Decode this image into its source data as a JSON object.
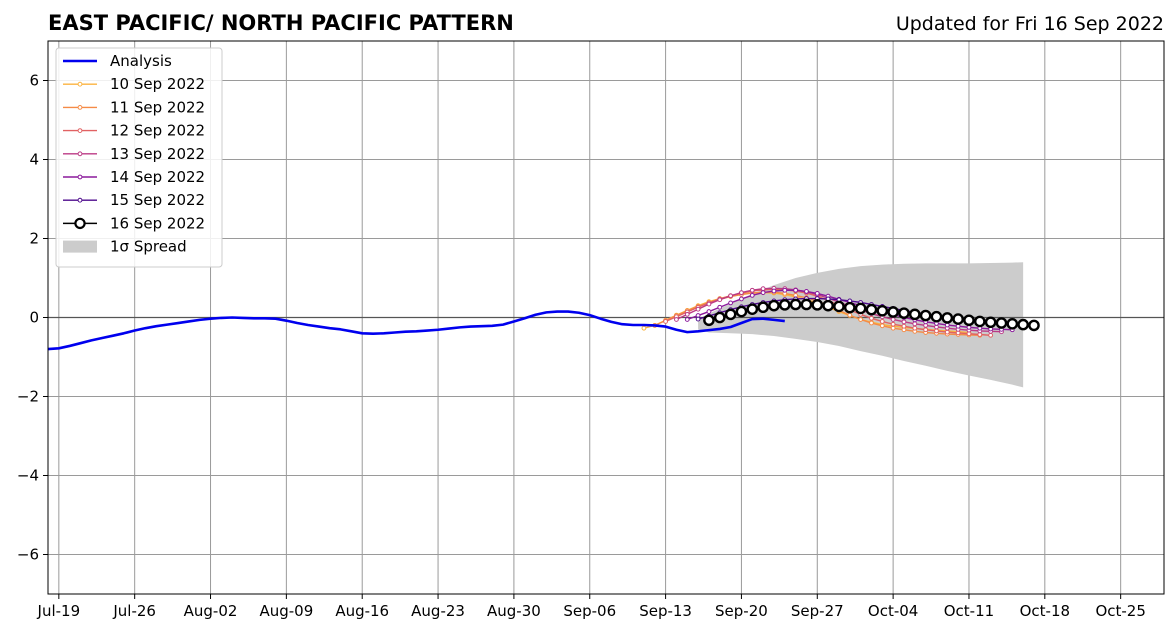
{
  "chart_data": {
    "type": "line",
    "title": "EAST PACIFIC/ NORTH PACIFIC PATTERN",
    "subtitle": "Updated for Fri 16 Sep 2022",
    "xlabel": "",
    "ylabel": "",
    "x_start": "2022-07-18",
    "x_end": "2022-10-29",
    "ylim": [
      -7,
      7
    ],
    "grid": true,
    "legend_position": "top-left",
    "x_ticks": [
      "Jul-19",
      "Jul-26",
      "Aug-02",
      "Aug-09",
      "Aug-16",
      "Aug-23",
      "Aug-30",
      "Sep-06",
      "Sep-13",
      "Sep-20",
      "Sep-27",
      "Oct-04",
      "Oct-11",
      "Oct-18",
      "Oct-25"
    ],
    "x_tick_dates": [
      "2022-07-19",
      "2022-07-26",
      "2022-08-02",
      "2022-08-09",
      "2022-08-16",
      "2022-08-23",
      "2022-08-30",
      "2022-09-06",
      "2022-09-13",
      "2022-09-20",
      "2022-09-27",
      "2022-10-04",
      "2022-10-11",
      "2022-10-18",
      "2022-10-25"
    ],
    "y_ticks": [
      -6,
      -4,
      -2,
      0,
      2,
      4,
      6
    ],
    "y_tick_labels": [
      "−6",
      "−4",
      "−2",
      "0",
      "2",
      "4",
      "6"
    ],
    "analysis": {
      "name": "Analysis",
      "color": "#0000ee",
      "points": [
        [
          "2022-07-18",
          -0.8
        ],
        [
          "2022-07-19",
          -0.78
        ],
        [
          "2022-07-20",
          -0.72
        ],
        [
          "2022-07-21",
          -0.65
        ],
        [
          "2022-07-22",
          -0.58
        ],
        [
          "2022-07-23",
          -0.52
        ],
        [
          "2022-07-24",
          -0.46
        ],
        [
          "2022-07-25",
          -0.4
        ],
        [
          "2022-07-26",
          -0.33
        ],
        [
          "2022-07-27",
          -0.27
        ],
        [
          "2022-07-28",
          -0.22
        ],
        [
          "2022-07-29",
          -0.18
        ],
        [
          "2022-07-30",
          -0.14
        ],
        [
          "2022-07-31",
          -0.1
        ],
        [
          "2022-08-01",
          -0.06
        ],
        [
          "2022-08-02",
          -0.03
        ],
        [
          "2022-08-03",
          -0.01
        ],
        [
          "2022-08-04",
          0.0
        ],
        [
          "2022-08-05",
          -0.01
        ],
        [
          "2022-08-06",
          -0.02
        ],
        [
          "2022-08-07",
          -0.02
        ],
        [
          "2022-08-08",
          -0.03
        ],
        [
          "2022-08-09",
          -0.08
        ],
        [
          "2022-08-10",
          -0.14
        ],
        [
          "2022-08-11",
          -0.19
        ],
        [
          "2022-08-12",
          -0.23
        ],
        [
          "2022-08-13",
          -0.27
        ],
        [
          "2022-08-14",
          -0.3
        ],
        [
          "2022-08-15",
          -0.35
        ],
        [
          "2022-08-16",
          -0.4
        ],
        [
          "2022-08-17",
          -0.41
        ],
        [
          "2022-08-18",
          -0.4
        ],
        [
          "2022-08-19",
          -0.38
        ],
        [
          "2022-08-20",
          -0.36
        ],
        [
          "2022-08-21",
          -0.35
        ],
        [
          "2022-08-22",
          -0.33
        ],
        [
          "2022-08-23",
          -0.31
        ],
        [
          "2022-08-24",
          -0.28
        ],
        [
          "2022-08-25",
          -0.25
        ],
        [
          "2022-08-26",
          -0.23
        ],
        [
          "2022-08-27",
          -0.22
        ],
        [
          "2022-08-28",
          -0.21
        ],
        [
          "2022-08-29",
          -0.18
        ],
        [
          "2022-08-30",
          -0.1
        ],
        [
          "2022-08-31",
          -0.02
        ],
        [
          "2022-09-01",
          0.07
        ],
        [
          "2022-09-02",
          0.13
        ],
        [
          "2022-09-03",
          0.15
        ],
        [
          "2022-09-04",
          0.15
        ],
        [
          "2022-09-05",
          0.12
        ],
        [
          "2022-09-06",
          0.06
        ],
        [
          "2022-09-07",
          -0.03
        ],
        [
          "2022-09-08",
          -0.11
        ],
        [
          "2022-09-09",
          -0.17
        ],
        [
          "2022-09-10",
          -0.19
        ],
        [
          "2022-09-11",
          -0.19
        ],
        [
          "2022-09-12",
          -0.2
        ],
        [
          "2022-09-13",
          -0.23
        ],
        [
          "2022-09-14",
          -0.31
        ],
        [
          "2022-09-15",
          -0.37
        ],
        [
          "2022-09-16",
          -0.35
        ],
        [
          "2022-09-17",
          -0.32
        ],
        [
          "2022-09-18",
          -0.29
        ],
        [
          "2022-09-19",
          -0.24
        ],
        [
          "2022-09-20",
          -0.14
        ],
        [
          "2022-09-21",
          -0.04
        ],
        [
          "2022-09-22",
          -0.03
        ],
        [
          "2022-09-23",
          -0.06
        ],
        [
          "2022-09-24",
          -0.09
        ]
      ]
    },
    "spread": {
      "name": "1σ Spread",
      "color": "#cccccc",
      "points": [
        [
          "2022-09-16",
          -0.3,
          -0.05
        ],
        [
          "2022-09-17",
          -0.38,
          0.1
        ],
        [
          "2022-09-19",
          -0.4,
          0.35
        ],
        [
          "2022-09-21",
          -0.42,
          0.6
        ],
        [
          "2022-09-23",
          -0.47,
          0.82
        ],
        [
          "2022-09-25",
          -0.54,
          1.0
        ],
        [
          "2022-09-27",
          -0.62,
          1.13
        ],
        [
          "2022-09-29",
          -0.72,
          1.23
        ],
        [
          "2022-10-01",
          -0.85,
          1.3
        ],
        [
          "2022-10-03",
          -0.97,
          1.34
        ],
        [
          "2022-10-05",
          -1.1,
          1.36
        ],
        [
          "2022-10-07",
          -1.22,
          1.37
        ],
        [
          "2022-10-09",
          -1.35,
          1.37
        ],
        [
          "2022-10-11",
          -1.47,
          1.37
        ],
        [
          "2022-10-13",
          -1.58,
          1.38
        ],
        [
          "2022-10-15",
          -1.7,
          1.39
        ],
        [
          "2022-10-16",
          -1.77,
          1.4
        ]
      ]
    },
    "series": [
      {
        "name": "10 Sep 2022",
        "color": "#fbb33f",
        "start": "2022-09-11",
        "values": [
          -0.27,
          -0.2,
          -0.07,
          0.06,
          0.18,
          0.3,
          0.4,
          0.48,
          0.55,
          0.6,
          0.62,
          0.63,
          0.62,
          0.58,
          0.52,
          0.45,
          0.37,
          0.26,
          0.15,
          0.05,
          -0.05,
          -0.12,
          -0.18,
          -0.22,
          -0.25,
          -0.28,
          -0.3,
          -0.32,
          -0.34,
          -0.36,
          -0.38
        ]
      },
      {
        "name": "11 Sep 2022",
        "color": "#f58b47",
        "start": "2022-09-12",
        "values": [
          -0.2,
          -0.08,
          0.05,
          0.17,
          0.28,
          0.38,
          0.46,
          0.53,
          0.58,
          0.62,
          0.64,
          0.64,
          0.61,
          0.56,
          0.5,
          0.42,
          0.3,
          0.18,
          0.06,
          -0.05,
          -0.14,
          -0.21,
          -0.27,
          -0.31,
          -0.35,
          -0.38,
          -0.4,
          -0.42,
          -0.43,
          -0.44,
          -0.45
        ]
      },
      {
        "name": "12 Sep 2022",
        "color": "#e16263",
        "start": "2022-09-13",
        "values": [
          -0.1,
          0.02,
          0.14,
          0.26,
          0.37,
          0.47,
          0.55,
          0.62,
          0.67,
          0.7,
          0.71,
          0.7,
          0.67,
          0.62,
          0.54,
          0.43,
          0.31,
          0.19,
          0.08,
          -0.02,
          -0.1,
          -0.17,
          -0.22,
          -0.27,
          -0.31,
          -0.34,
          -0.37,
          -0.39,
          -0.41,
          -0.43,
          -0.45
        ]
      },
      {
        "name": "13 Sep 2022",
        "color": "#bb3a85",
        "start": "2022-09-14",
        "values": [
          -0.05,
          0.08,
          0.21,
          0.34,
          0.45,
          0.55,
          0.63,
          0.69,
          0.73,
          0.74,
          0.73,
          0.7,
          0.65,
          0.58,
          0.49,
          0.39,
          0.29,
          0.19,
          0.1,
          0.02,
          -0.05,
          -0.11,
          -0.16,
          -0.2,
          -0.24,
          -0.27,
          -0.3,
          -0.32,
          -0.34,
          -0.35,
          -0.36
        ]
      },
      {
        "name": "14 Sep 2022",
        "color": "#8b1a9c",
        "start": "2022-09-15",
        "values": [
          -0.05,
          0.05,
          0.15,
          0.26,
          0.37,
          0.47,
          0.56,
          0.63,
          0.67,
          0.69,
          0.69,
          0.66,
          0.61,
          0.54,
          0.46,
          0.38,
          0.3,
          0.22,
          0.14,
          0.07,
          0.0,
          -0.06,
          -0.11,
          -0.15,
          -0.19,
          -0.22,
          -0.25,
          -0.27,
          -0.29,
          -0.3,
          -0.31
        ]
      },
      {
        "name": "15 Sep 2022",
        "color": "#4d0a8c",
        "start": "2022-09-16",
        "values": [
          -0.04,
          0.04,
          0.12,
          0.2,
          0.27,
          0.33,
          0.38,
          0.42,
          0.45,
          0.47,
          0.48,
          0.48,
          0.47,
          0.45,
          0.42,
          0.38,
          0.33,
          0.28,
          0.23,
          0.18,
          0.13,
          0.09,
          0.05,
          0.01,
          -0.03,
          -0.07,
          -0.1,
          -0.13,
          -0.16,
          -0.18,
          -0.2
        ]
      },
      {
        "name": "16 Sep 2022",
        "color": "#000000",
        "marker": "open-circle",
        "start": "2022-09-17",
        "values": [
          -0.07,
          0.0,
          0.08,
          0.15,
          0.21,
          0.26,
          0.3,
          0.32,
          0.33,
          0.33,
          0.32,
          0.3,
          0.28,
          0.25,
          0.23,
          0.2,
          0.17,
          0.14,
          0.11,
          0.08,
          0.05,
          0.02,
          -0.01,
          -0.04,
          -0.07,
          -0.1,
          -0.12,
          -0.14,
          -0.16,
          -0.18,
          -0.2
        ]
      }
    ],
    "legend": [
      {
        "label": "Analysis",
        "kind": "line",
        "color": "#0000ee"
      },
      {
        "label": "10 Sep 2022",
        "kind": "marker-line",
        "color": "#fbb33f"
      },
      {
        "label": "11 Sep 2022",
        "kind": "marker-line",
        "color": "#f58b47"
      },
      {
        "label": "12 Sep 2022",
        "kind": "marker-line",
        "color": "#e16263"
      },
      {
        "label": "13 Sep 2022",
        "kind": "marker-line",
        "color": "#bb3a85"
      },
      {
        "label": "14 Sep 2022",
        "kind": "marker-line",
        "color": "#8b1a9c"
      },
      {
        "label": "15 Sep 2022",
        "kind": "marker-line",
        "color": "#4d0a8c"
      },
      {
        "label": "16 Sep 2022",
        "kind": "open-circle-line",
        "color": "#000000"
      },
      {
        "label": "1σ Spread",
        "kind": "patch",
        "color": "#cccccc"
      }
    ]
  }
}
